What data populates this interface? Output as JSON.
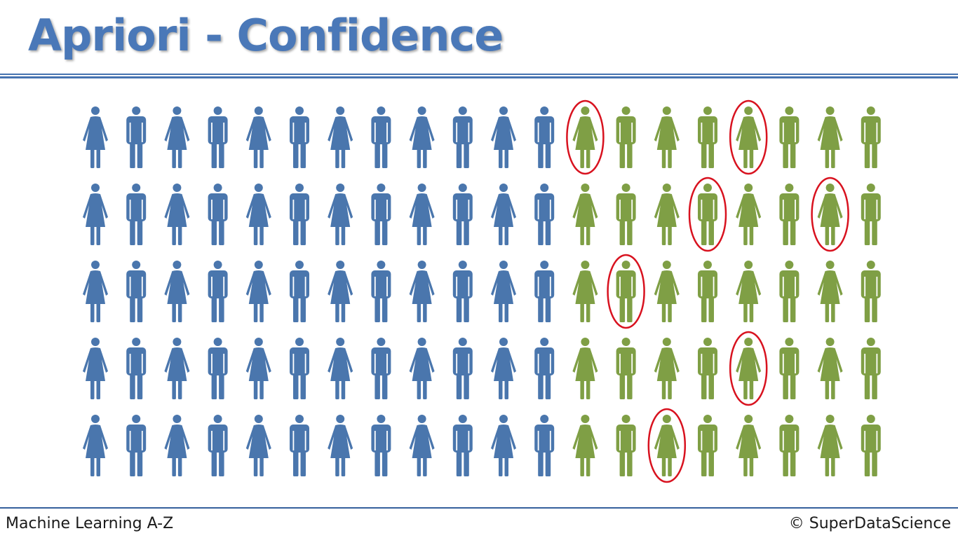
{
  "slide": {
    "title": "Apriori - Confidence",
    "footer_left": "Machine Learning A-Z",
    "footer_right": "© SuperDataScience"
  },
  "colors": {
    "blue_person": "#4a76ad",
    "green_person": "#7f9f45",
    "highlight_ring": "#d8121f",
    "title": "#4a78b8",
    "rules": "#4672b0"
  },
  "people_grid": {
    "rows": [
      {
        "figures": [
          "female",
          "male",
          "female",
          "male",
          "female",
          "male",
          "female",
          "male",
          "female",
          "male",
          "female",
          "male",
          "female",
          "male",
          "female",
          "male",
          "female",
          "male",
          "female",
          "male"
        ],
        "groups": [
          "blue",
          "blue",
          "blue",
          "blue",
          "blue",
          "blue",
          "blue",
          "blue",
          "blue",
          "blue",
          "blue",
          "blue",
          "green",
          "green",
          "green",
          "green",
          "green",
          "green",
          "green",
          "green"
        ],
        "circled": [
          12,
          16
        ]
      },
      {
        "figures": [
          "female",
          "male",
          "female",
          "male",
          "female",
          "male",
          "female",
          "male",
          "female",
          "male",
          "female",
          "male",
          "female",
          "male",
          "female",
          "male",
          "female",
          "male",
          "female",
          "male"
        ],
        "groups": [
          "blue",
          "blue",
          "blue",
          "blue",
          "blue",
          "blue",
          "blue",
          "blue",
          "blue",
          "blue",
          "blue",
          "blue",
          "green",
          "green",
          "green",
          "green",
          "green",
          "green",
          "green",
          "green"
        ],
        "circled": [
          15,
          18
        ]
      },
      {
        "figures": [
          "female",
          "male",
          "female",
          "male",
          "female",
          "male",
          "female",
          "male",
          "female",
          "male",
          "female",
          "male",
          "female",
          "male",
          "female",
          "male",
          "female",
          "male",
          "female",
          "male"
        ],
        "groups": [
          "blue",
          "blue",
          "blue",
          "blue",
          "blue",
          "blue",
          "blue",
          "blue",
          "blue",
          "blue",
          "blue",
          "blue",
          "green",
          "green",
          "green",
          "green",
          "green",
          "green",
          "green",
          "green"
        ],
        "circled": [
          13
        ]
      },
      {
        "figures": [
          "female",
          "male",
          "female",
          "male",
          "female",
          "male",
          "female",
          "male",
          "female",
          "male",
          "female",
          "male",
          "female",
          "male",
          "female",
          "male",
          "female",
          "male",
          "female",
          "male"
        ],
        "groups": [
          "blue",
          "blue",
          "blue",
          "blue",
          "blue",
          "blue",
          "blue",
          "blue",
          "blue",
          "blue",
          "blue",
          "blue",
          "green",
          "green",
          "green",
          "green",
          "green",
          "green",
          "green",
          "green"
        ],
        "circled": [
          16
        ]
      },
      {
        "figures": [
          "female",
          "male",
          "female",
          "male",
          "female",
          "male",
          "female",
          "male",
          "female",
          "male",
          "female",
          "male",
          "female",
          "male",
          "female",
          "male",
          "female",
          "male",
          "female",
          "male"
        ],
        "groups": [
          "blue",
          "blue",
          "blue",
          "blue",
          "blue",
          "blue",
          "blue",
          "blue",
          "blue",
          "blue",
          "blue",
          "blue",
          "green",
          "green",
          "green",
          "green",
          "green",
          "green",
          "green",
          "green"
        ],
        "circled": [
          14
        ]
      }
    ]
  }
}
